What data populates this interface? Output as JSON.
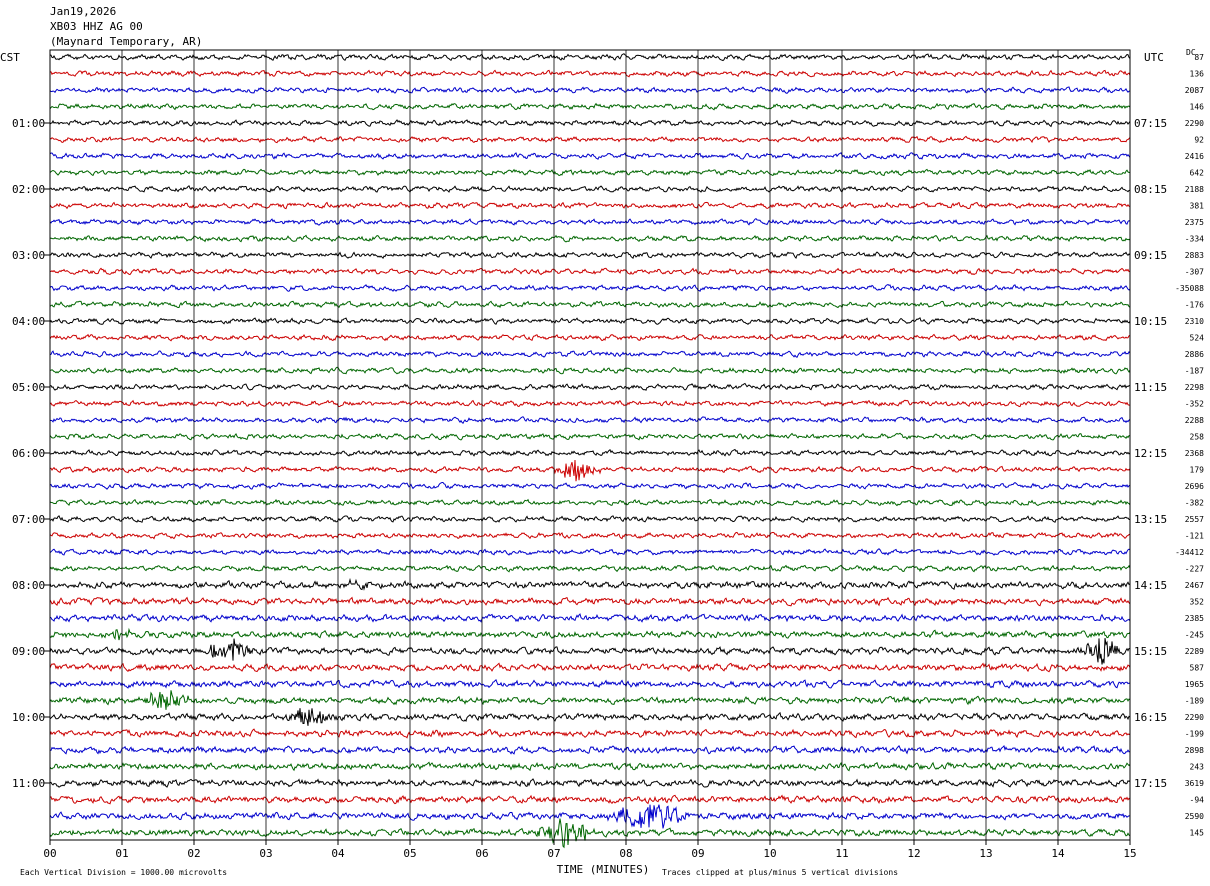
{
  "header": {
    "date": "Jan19,2026",
    "station": "XB03 HHZ AG 00",
    "location": "(Maynard Temporary, AR)"
  },
  "left_tz": "CST",
  "right_tz": "UTC",
  "dc_label": "DC",
  "footer": {
    "note_left": "Each Vertical Division = 1000.00 microvolts",
    "xlabel": "TIME (MINUTES)",
    "note_right": "Traces clipped at plus/minus 5 vertical divisions"
  },
  "colors": {
    "cycle": [
      "#000000",
      "#cc0000",
      "#0000cc",
      "#006600"
    ]
  },
  "chart_data": {
    "type": "line",
    "subtype": "helicorder",
    "row_minutes": 15,
    "x_ticks": [
      "00",
      "01",
      "02",
      "03",
      "04",
      "05",
      "06",
      "07",
      "08",
      "09",
      "10",
      "11",
      "12",
      "13",
      "14",
      "15"
    ],
    "xlim": [
      0,
      15
    ],
    "rows": 48,
    "left_hour_labels": [
      {
        "row": 4,
        "text": "01:00"
      },
      {
        "row": 8,
        "text": "02:00"
      },
      {
        "row": 12,
        "text": "03:00"
      },
      {
        "row": 16,
        "text": "04:00"
      },
      {
        "row": 20,
        "text": "05:00"
      },
      {
        "row": 24,
        "text": "06:00"
      },
      {
        "row": 28,
        "text": "07:00"
      },
      {
        "row": 32,
        "text": "08:00"
      },
      {
        "row": 36,
        "text": "09:00"
      },
      {
        "row": 40,
        "text": "10:00"
      },
      {
        "row": 44,
        "text": "11:00"
      }
    ],
    "right_hour_labels": [
      {
        "row": 4,
        "text": "07:15"
      },
      {
        "row": 8,
        "text": "08:15"
      },
      {
        "row": 12,
        "text": "09:15"
      },
      {
        "row": 16,
        "text": "10:15"
      },
      {
        "row": 20,
        "text": "11:15"
      },
      {
        "row": 24,
        "text": "12:15"
      },
      {
        "row": 28,
        "text": "13:15"
      },
      {
        "row": 32,
        "text": "14:15"
      },
      {
        "row": 36,
        "text": "15:15"
      },
      {
        "row": 40,
        "text": "16:15"
      },
      {
        "row": 44,
        "text": "17:15"
      }
    ],
    "dc_offsets": [
      "87",
      "136",
      "2087",
      "146",
      "2290",
      "92",
      "2416",
      "642",
      "2188",
      "381",
      "2375",
      "-334",
      "2883",
      "-307",
      "-35088",
      "-176",
      "2310",
      "524",
      "2886",
      "-187",
      "2298",
      "-352",
      "2288",
      "258",
      "2368",
      "179",
      "2696",
      "-382",
      "2557",
      "-121",
      "-34412",
      "-227",
      "2467",
      "352",
      "2385",
      "-245",
      "2289",
      "587",
      "1965",
      "-189",
      "2290",
      "-199",
      "2898",
      "243",
      "3619",
      "-94",
      "2590",
      "145"
    ],
    "events": [
      {
        "row": 25,
        "start_min": 6.9,
        "end_min": 7.7,
        "amplitude": 1.0
      },
      {
        "row": 35,
        "start_min": 0.7,
        "end_min": 1.2,
        "amplitude": 0.5
      },
      {
        "row": 36,
        "start_min": 2.1,
        "end_min": 2.9,
        "amplitude": 1.3
      },
      {
        "row": 36,
        "start_min": 14.3,
        "end_min": 14.9,
        "amplitude": 1.5
      },
      {
        "row": 39,
        "start_min": 1.2,
        "end_min": 2.0,
        "amplitude": 1.0
      },
      {
        "row": 40,
        "start_min": 3.2,
        "end_min": 4.0,
        "amplitude": 0.9
      },
      {
        "row": 32,
        "start_min": 4.1,
        "end_min": 4.5,
        "amplitude": 0.5
      },
      {
        "row": 46,
        "start_min": 7.7,
        "end_min": 8.9,
        "amplitude": 1.6
      },
      {
        "row": 47,
        "start_min": 6.7,
        "end_min": 7.6,
        "amplitude": 1.5
      }
    ],
    "grid": true
  }
}
